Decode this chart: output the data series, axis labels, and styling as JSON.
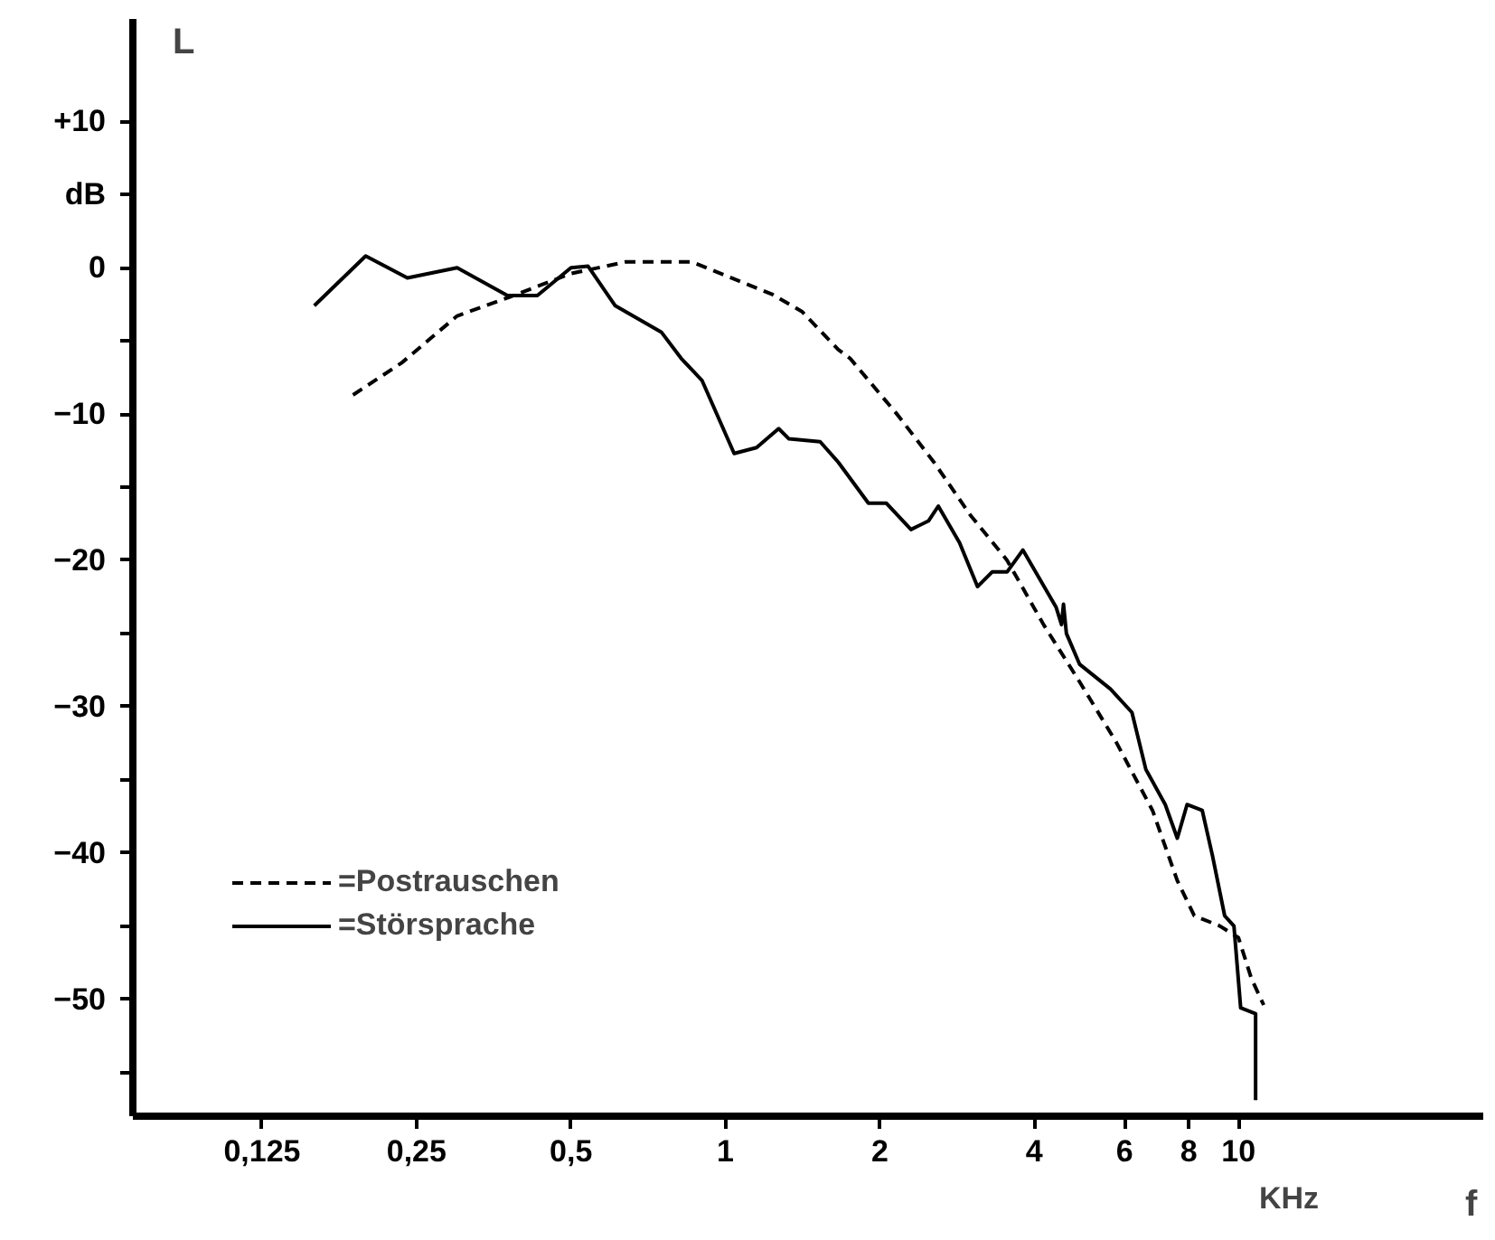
{
  "chart_data": {
    "type": "line",
    "xlabel": "f",
    "ylabel": "L",
    "annotations": [
      "KHz"
    ],
    "log": "x",
    "grid": false,
    "legend": "bottom left",
    "xlim": [
      0.07,
      30
    ],
    "ylim": [
      -58,
      17
    ],
    "xticks": [
      {
        "value": 0.125,
        "label": "0,125"
      },
      {
        "value": 0.25,
        "label": "0,25"
      },
      {
        "value": 0.5,
        "label": "0,5"
      },
      1,
      2,
      4,
      6,
      8,
      10
    ],
    "yticks": [
      {
        "value": 10,
        "label": "+10"
      },
      {
        "value": 5,
        "label": "dB"
      },
      0,
      {
        "value": -5,
        "label": null
      },
      {
        "value": -10,
        "label": "−10"
      },
      {
        "value": -15,
        "label": null
      },
      {
        "value": -20,
        "label": "−20"
      },
      {
        "value": -25,
        "label": null
      },
      {
        "value": -30,
        "label": "−30"
      },
      {
        "value": -35,
        "label": null
      },
      {
        "value": -40,
        "label": "−40"
      },
      {
        "value": -45,
        "label": null
      },
      {
        "value": -50,
        "label": "−50"
      },
      {
        "value": -55,
        "label": null
      }
    ],
    "series": [
      {
        "name": "=Postrauschen",
        "color": "#000000",
        "line_style": "dashed",
        "x": [
          0.188,
          0.234,
          0.3,
          0.38,
          0.5,
          0.64,
          0.86,
          1.23,
          1.41,
          1.66,
          1.75,
          2.17,
          2.55,
          3.0,
          3.54,
          4.17,
          4.9,
          5.77,
          6.8,
          7.6,
          8.2,
          9.2,
          10.0,
          10.6,
          11.2
        ],
        "values": [
          -8.7,
          -6.5,
          -3.3,
          -2.0,
          -0.4,
          0.4,
          0.4,
          -1.8,
          -3.0,
          -5.6,
          -6.2,
          -10.1,
          -13.3,
          -16.9,
          -20,
          -24.4,
          -28.3,
          -32.4,
          -37.1,
          -41.9,
          -44.3,
          -45,
          -45.8,
          -48.6,
          -50.4
        ]
      },
      {
        "name": "=Störsprache",
        "color": "#000000",
        "line_style": "solid",
        "x": [
          0.158,
          0.199,
          0.24,
          0.3,
          0.376,
          0.43,
          0.5,
          0.54,
          0.61,
          0.75,
          0.82,
          0.9,
          1.04,
          1.15,
          1.27,
          1.33,
          1.53,
          1.66,
          1.9,
          2.06,
          2.3,
          2.49,
          2.6,
          2.86,
          3.1,
          3.31,
          3.54,
          3.8,
          4.41,
          4.52,
          4.56,
          4.62,
          4.9,
          5.63,
          6.2,
          6.6,
          7.2,
          7.6,
          7.94,
          8.5,
          8.9,
          9.4,
          9.8,
          10.1,
          10.8,
          10.8
        ],
        "values": [
          -2.6,
          0.8,
          -0.7,
          0,
          -1.9,
          -1.9,
          0,
          0.1,
          -2.6,
          -4.4,
          -6.2,
          -7.7,
          -12.7,
          -12.3,
          -11,
          -11.7,
          -11.9,
          -13.3,
          -16.1,
          -16.1,
          -17.9,
          -17.3,
          -16.3,
          -18.8,
          -21.8,
          -20.8,
          -20.8,
          -19.3,
          -23.2,
          -24.4,
          -23,
          -25,
          -27.1,
          -28.8,
          -30.4,
          -34.3,
          -36.7,
          -39,
          -36.7,
          -37.1,
          -40.2,
          -44.3,
          -45,
          -50.6,
          -51,
          -56.9
        ]
      }
    ]
  }
}
